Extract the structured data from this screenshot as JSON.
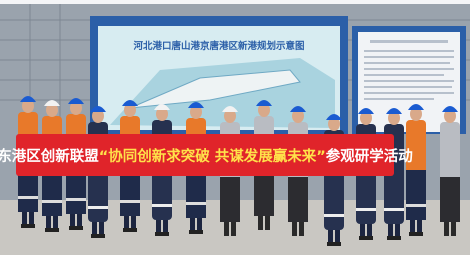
{
  "board": {
    "title": "河北港口唐山港京唐港区新港规划示意图"
  },
  "banner": {
    "parts": [
      "东港区创新联盟",
      "“协同创新求突破 共谋发展赢未来”",
      "参观研学活动"
    ]
  }
}
